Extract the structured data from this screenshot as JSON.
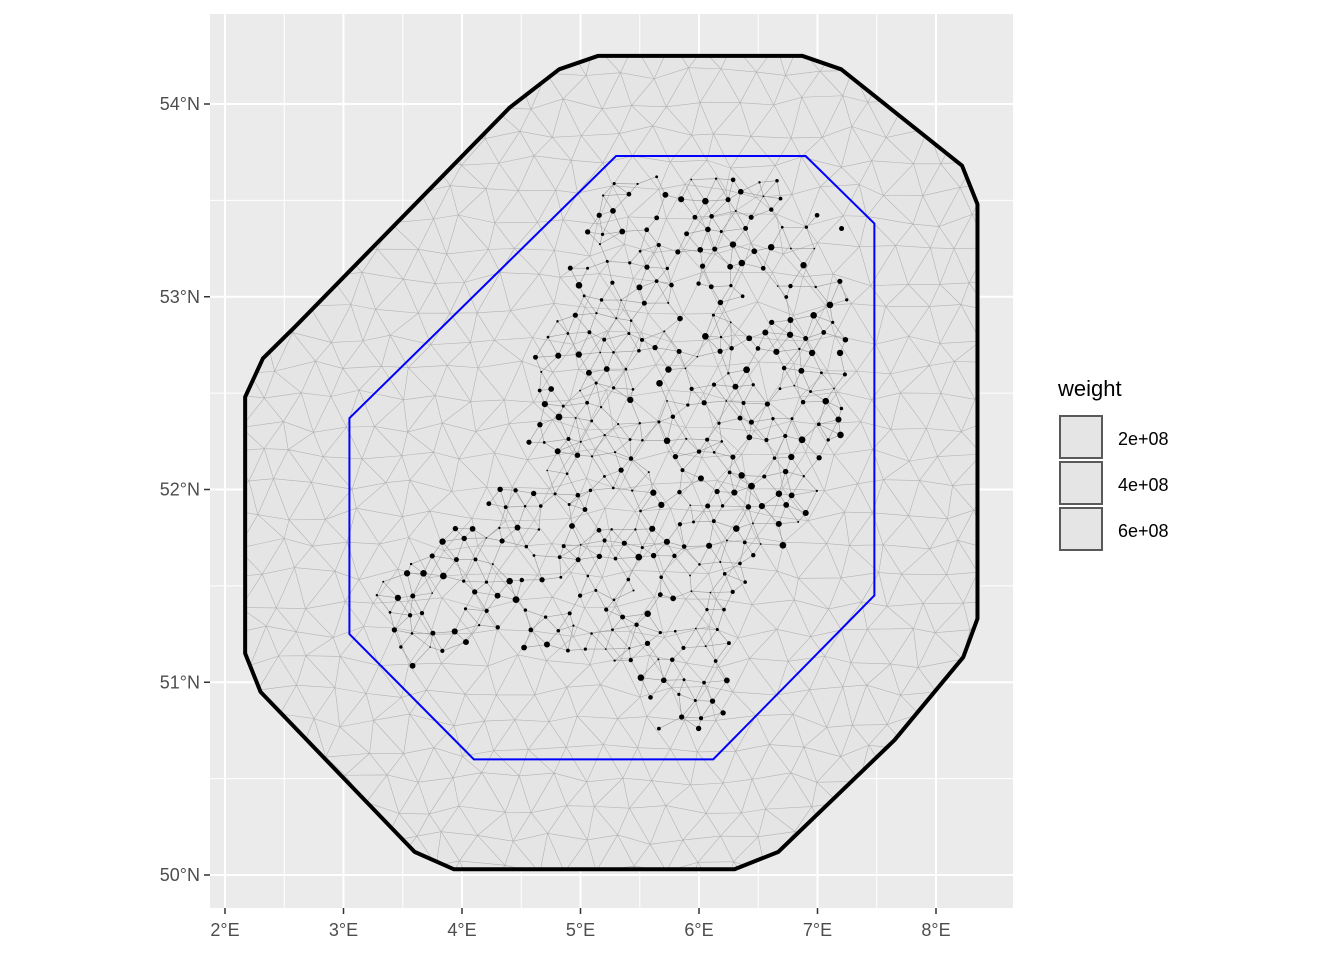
{
  "chart_data": {
    "type": "scatter",
    "title": "",
    "xlabel": "",
    "ylabel": "",
    "xlim": [
      1.97,
      8.67
    ],
    "ylim": [
      49.83,
      54.43
    ],
    "x_ticks": [
      {
        "value": 2,
        "label": "2°E"
      },
      {
        "value": 3,
        "label": "3°E"
      },
      {
        "value": 4,
        "label": "4°E"
      },
      {
        "value": 5,
        "label": "5°E"
      },
      {
        "value": 6,
        "label": "6°E"
      },
      {
        "value": 7,
        "label": "7°E"
      },
      {
        "value": 8,
        "label": "8°E"
      }
    ],
    "y_ticks": [
      {
        "value": 50,
        "label": "50°N"
      },
      {
        "value": 51,
        "label": "51°N"
      },
      {
        "value": 52,
        "label": "52°N"
      },
      {
        "value": 53,
        "label": "53°N"
      },
      {
        "value": 54,
        "label": "54°N"
      }
    ],
    "grid": true,
    "outer_boundary": [
      [
        5.15,
        54.25
      ],
      [
        6.05,
        54.25
      ],
      [
        6.87,
        54.25
      ],
      [
        7.2,
        54.18
      ],
      [
        8.22,
        53.68
      ],
      [
        8.35,
        53.48
      ],
      [
        8.35,
        51.33
      ],
      [
        8.23,
        51.13
      ],
      [
        7.65,
        50.7
      ],
      [
        6.67,
        50.12
      ],
      [
        6.3,
        50.03
      ],
      [
        3.93,
        50.03
      ],
      [
        3.6,
        50.12
      ],
      [
        2.3,
        50.95
      ],
      [
        2.17,
        51.15
      ],
      [
        2.17,
        52.48
      ],
      [
        2.32,
        52.68
      ],
      [
        2.6,
        52.85
      ],
      [
        4.4,
        53.98
      ],
      [
        4.82,
        54.18
      ]
    ],
    "inner_boundary": [
      [
        5.3,
        53.73
      ],
      [
        6.9,
        53.73
      ],
      [
        7.48,
        53.38
      ],
      [
        7.48,
        51.45
      ],
      [
        6.12,
        50.6
      ],
      [
        4.1,
        50.6
      ],
      [
        3.05,
        51.25
      ],
      [
        3.05,
        52.37
      ]
    ],
    "legend": {
      "title": "weight",
      "entries": [
        "2e+08",
        "4e+08",
        "6e+08"
      ],
      "placement": "right"
    },
    "points_note": "",
    "mesh_color": "#b3b3b3",
    "outer_color": "#000000",
    "inner_color": "#0000ff",
    "point_color": "#000000",
    "panel_color": "#ebebeb",
    "fill_color": "#e5e5e5"
  }
}
